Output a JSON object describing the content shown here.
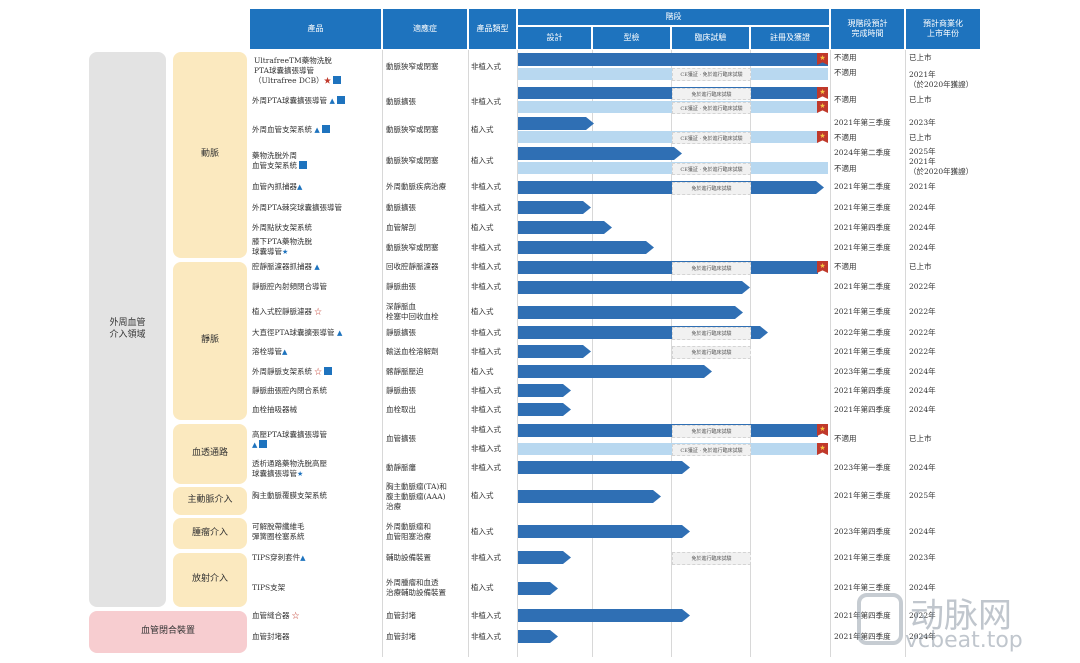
{
  "header": {
    "product": "產品",
    "indication": "適應症",
    "product_type": "產品類型",
    "stage": "階段",
    "stages": [
      "設計",
      "型檢",
      "臨床試驗",
      "註冊及獲證"
    ],
    "completion": "現階段預計\n完成時間",
    "launch": "預計商業化\n上市年份"
  },
  "groups": {
    "main": "外周血管\n介入領域",
    "artery": "動脈",
    "vein": "靜脈",
    "dialysis": "血透通路",
    "aorta": "主動脈介入",
    "tumor": "腫瘤介入",
    "radiology": "放射介入",
    "closure": "血管閉合裝置"
  },
  "notes": {
    "ce_exempt": "CE獲証 · 免於進行臨床試驗",
    "exempt": "免於進行臨床試驗"
  },
  "rows": [
    {
      "product": "UltrafreeTM藥物洗脫\nPTA球囊擴張導管\n（Ultrafree DCB）",
      "indication": "動脈狹窄或閉塞",
      "type": "非植入式",
      "completion": "不適用",
      "launch": "已上市"
    },
    {
      "product": "",
      "indication": "",
      "type": "",
      "completion": "不適用",
      "launch": "2021年\n（於2020年獲證）"
    },
    {
      "product": "外周PTA球囊擴張導管",
      "indication": "動脈擴張",
      "type": "非植入式",
      "completion": "不適用",
      "launch": "已上市"
    },
    {
      "product": "外周血管支架系統",
      "indication": "動脈狹窄或閉塞",
      "type": "植入式",
      "completion": "2021年第三季度",
      "launch": "2023年"
    },
    {
      "product": "",
      "indication": "",
      "type": "",
      "completion": "不適用",
      "launch": "已上市"
    },
    {
      "product": "藥物洗脫外周\n血管支架系統",
      "indication": "動脈狹窄或閉塞",
      "type": "植入式",
      "completion": "2024年第二季度",
      "launch": "2025年"
    },
    {
      "product": "",
      "indication": "",
      "type": "",
      "completion": "不適用",
      "launch": "2021年\n（於2020年獲證）"
    },
    {
      "product": "血管內抓捕器",
      "indication": "外周動脈疾病治療",
      "type": "非植入式",
      "completion": "2021年第二季度",
      "launch": "2021年"
    },
    {
      "product": "外周PTA棘突球囊擴張導管",
      "indication": "動脈擴張",
      "type": "非植入式",
      "completion": "2021年第三季度",
      "launch": "2024年"
    },
    {
      "product": "外周點狀支架系統",
      "indication": "血管解剖",
      "type": "植入式",
      "completion": "2021年第四季度",
      "launch": "2024年"
    },
    {
      "product": "膝下PTA藥物洗脫\n球囊導管",
      "indication": "動脈狹窄或閉塞",
      "type": "非植入式",
      "completion": "2021年第三季度",
      "launch": "2024年"
    },
    {
      "product": "腔靜脈濾器抓捕器",
      "indication": "回收腔靜脈濾器",
      "type": "非植入式",
      "completion": "不適用",
      "launch": "已上市"
    },
    {
      "product": "靜脈腔內射頻閉合導管",
      "indication": "靜脈曲張",
      "type": "非植入式",
      "completion": "2021年第二季度",
      "launch": "2022年"
    },
    {
      "product": "植入式腔靜脈濾器",
      "indication": "深靜脈血\n栓塞中回收血栓",
      "type": "植入式",
      "completion": "2021年第三季度",
      "launch": "2022年"
    },
    {
      "product": "大直徑PTA球囊擴張導管",
      "indication": "靜脈擴張",
      "type": "非植入式",
      "completion": "2022年第二季度",
      "launch": "2022年"
    },
    {
      "product": "溶栓導管",
      "indication": "輸送血栓溶解劑",
      "type": "非植入式",
      "completion": "2021年第三季度",
      "launch": "2022年"
    },
    {
      "product": "外周靜脈支架系統",
      "indication": "髂靜脈壓迫",
      "type": "植入式",
      "completion": "2023年第二季度",
      "launch": "2024年"
    },
    {
      "product": "靜脈曲張腔內閉合系統",
      "indication": "靜脈曲張",
      "type": "非植入式",
      "completion": "2021年第四季度",
      "launch": "2024年"
    },
    {
      "product": "血栓抽吸器械",
      "indication": "血栓取出",
      "type": "非植入式",
      "completion": "2021年第四季度",
      "launch": "2024年"
    },
    {
      "product": "高壓PTA球囊擴張導管",
      "indication": "血管擴張",
      "type": "非植入式",
      "completion": "不適用",
      "launch": "已上市"
    },
    {
      "product": "",
      "indication": "",
      "type": "非植入式",
      "completion": "",
      "launch": ""
    },
    {
      "product": "透析通路藥物洗脫高壓\n球囊擴張導管",
      "indication": "動靜脈瘻",
      "type": "非植入式",
      "completion": "2023年第一季度",
      "launch": "2024年"
    },
    {
      "product": "胸主動脈覆膜支架系統",
      "indication": "胸主動脈瘤(TA)和\n腹主動脈瘤(AAA)\n治療",
      "type": "植入式",
      "completion": "2021年第三季度",
      "launch": "2025年"
    },
    {
      "product": "可解脫帶纖維毛\n彈簧圈栓塞系統",
      "indication": "外周動脈瘤和\n血管阻塞治療",
      "type": "植入式",
      "completion": "2023年第四季度",
      "launch": "2024年"
    },
    {
      "product": "TIPS穿刺套件",
      "indication": "輔助設備裝置",
      "type": "非植入式",
      "completion": "2021年第三季度",
      "launch": "2023年"
    },
    {
      "product": "TIPS支架",
      "indication": "外周腫瘤和血透\n治療輔助設備裝置",
      "type": "植入式",
      "completion": "2021年第三季度",
      "launch": "2024年"
    },
    {
      "product": "血管縫合器",
      "indication": "血管封堵",
      "type": "非植入式",
      "completion": "2021年第四季度",
      "launch": "2022年"
    },
    {
      "product": "血管封堵器",
      "indication": "血管封堵",
      "type": "非植入式",
      "completion": "2021年第四季度",
      "launch": "2024年"
    }
  ],
  "watermark": {
    "brand": "动脉网",
    "url": "vcbeat.top"
  },
  "colors": {
    "header": "#1e73be",
    "bar": "#2f6fb4",
    "bar_light": "#b8d8f0",
    "group_yellow": "#fbe9bf",
    "group_gray": "#e3e3e3",
    "group_pink": "#f7cdd0"
  }
}
